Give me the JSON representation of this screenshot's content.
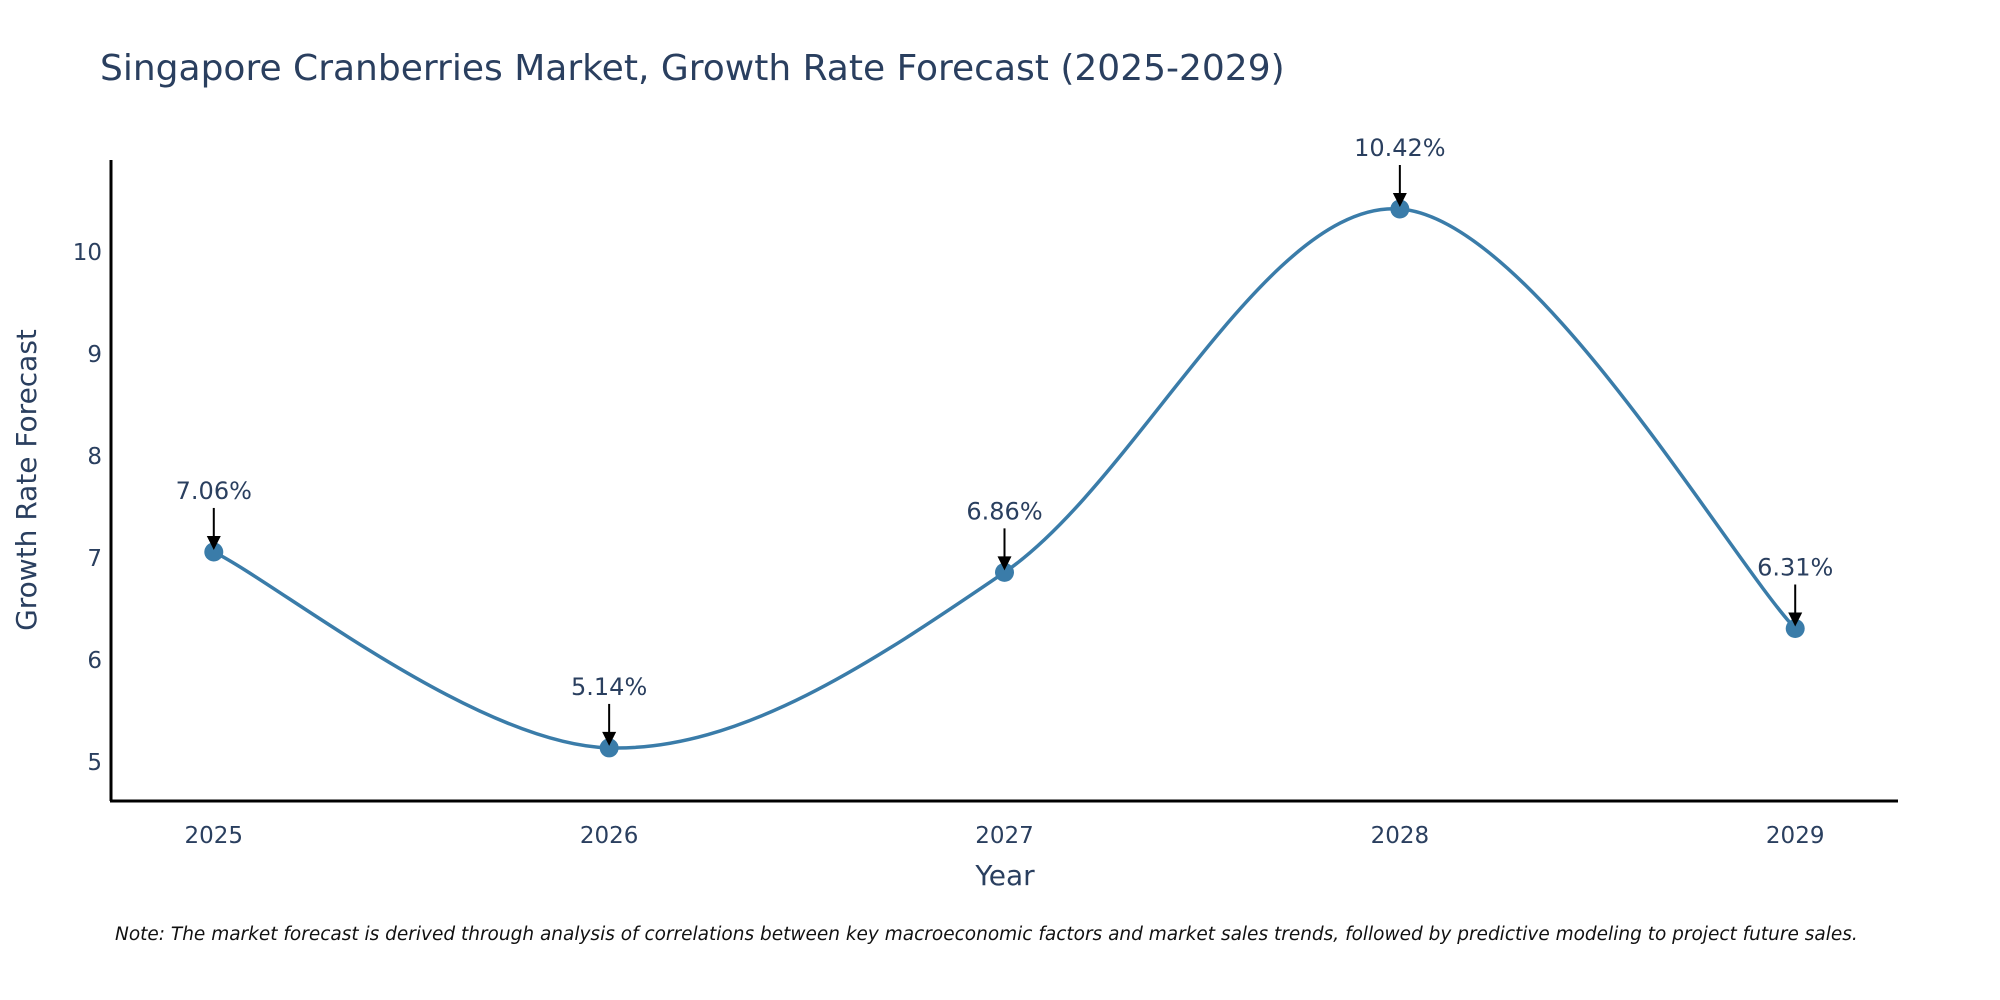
{
  "colors": {
    "line": "#3a7ca9",
    "marker": "#3a7ca9",
    "axis": "#000000",
    "text": "#2a3f5f",
    "arrow": "#000000"
  },
  "chart_data": {
    "type": "line",
    "title": "Singapore Cranberries Market, Growth Rate Forecast (2025-2029)",
    "xlabel": "Year",
    "ylabel": "Growth Rate Forecast",
    "categories": [
      "2025",
      "2026",
      "2027",
      "2028",
      "2029"
    ],
    "series": [
      {
        "name": "Growth Rate Forecast",
        "values": [
          7.06,
          5.14,
          6.86,
          10.42,
          6.31
        ]
      }
    ],
    "data_labels": [
      "7.06%",
      "5.14%",
      "6.86%",
      "10.42%",
      "6.31%"
    ],
    "yticks": [
      5,
      6,
      7,
      8,
      9,
      10
    ],
    "ylim": [
      4.62,
      10.9
    ],
    "x_padding": 0.26,
    "grid": false,
    "line_shape": "spline",
    "note": "Note: The market forecast is derived through analysis of correlations between key macroeconomic factors and market sales trends, followed by predictive modeling to project future sales."
  }
}
